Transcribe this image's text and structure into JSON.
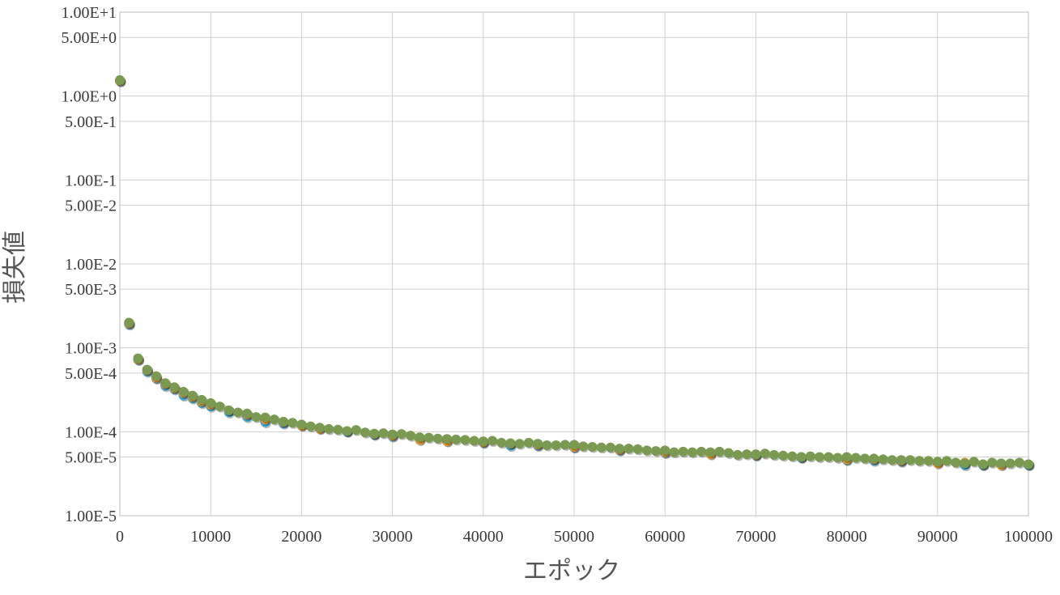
{
  "chart_data": {
    "type": "scatter",
    "title": "",
    "xlabel": "エポック",
    "ylabel": "損失値",
    "xlim": [
      0,
      100000
    ],
    "ylim": [
      1e-05,
      10
    ],
    "y_scale": "log",
    "grid": true,
    "legend": "none",
    "x_ticks": [
      {
        "value": 0,
        "label": "0"
      },
      {
        "value": 10000,
        "label": "10000"
      },
      {
        "value": 20000,
        "label": "20000"
      },
      {
        "value": 30000,
        "label": "30000"
      },
      {
        "value": 40000,
        "label": "40000"
      },
      {
        "value": 50000,
        "label": "50000"
      },
      {
        "value": 60000,
        "label": "60000"
      },
      {
        "value": 70000,
        "label": "70000"
      },
      {
        "value": 80000,
        "label": "80000"
      },
      {
        "value": 90000,
        "label": "90000"
      },
      {
        "value": 100000,
        "label": "100000"
      }
    ],
    "y_ticks": [
      {
        "value": 10,
        "label": "1.00E+1"
      },
      {
        "value": 5,
        "label": "5.00E+0"
      },
      {
        "value": 1,
        "label": "1.00E+0"
      },
      {
        "value": 0.5,
        "label": "5.00E-1"
      },
      {
        "value": 0.1,
        "label": "1.00E-1"
      },
      {
        "value": 0.05,
        "label": "5.00E-2"
      },
      {
        "value": 0.01,
        "label": "1.00E-2"
      },
      {
        "value": 0.005,
        "label": "5.00E-3"
      },
      {
        "value": 0.001,
        "label": "1.00E-3"
      },
      {
        "value": 0.0005,
        "label": "5.00E-4"
      },
      {
        "value": 0.0001,
        "label": "1.00E-4"
      },
      {
        "value": 5e-05,
        "label": "5.00E-5"
      },
      {
        "value": 1e-05,
        "label": "1.00E-5"
      }
    ],
    "series": [
      {
        "color": "#3fa7d6",
        "points": [
          [
            0,
            1.5
          ],
          [
            1000,
            0.0019
          ],
          [
            2000,
            0.00072
          ],
          [
            3000,
            0.00052
          ],
          [
            4000,
            0.00043
          ],
          [
            5000,
            0.00035
          ],
          [
            6000,
            0.00032
          ],
          [
            7000,
            0.00027
          ],
          [
            8000,
            0.00025
          ],
          [
            9000,
            0.00022
          ],
          [
            10000,
            0.0002
          ],
          [
            12000,
            0.00017
          ],
          [
            14000,
            0.00015
          ],
          [
            16000,
            0.00013
          ],
          [
            18000,
            0.000125
          ],
          [
            20000,
            0.00012
          ],
          [
            22000,
            0.00011
          ],
          [
            25000,
            0.0001
          ],
          [
            28000,
            9.2e-05
          ],
          [
            30000,
            8.8e-05
          ],
          [
            33000,
            8.2e-05
          ],
          [
            36000,
            7.8e-05
          ],
          [
            40000,
            7.4e-05
          ],
          [
            43000,
            6.8e-05
          ],
          [
            46000,
            6.8e-05
          ],
          [
            50000,
            6.5e-05
          ],
          [
            55000,
            6e-05
          ],
          [
            60000,
            5.6e-05
          ],
          [
            65000,
            5.5e-05
          ],
          [
            70000,
            5.2e-05
          ],
          [
            75000,
            4.9e-05
          ],
          [
            80000,
            4.6e-05
          ],
          [
            83000,
            4.5e-05
          ],
          [
            86000,
            4.4e-05
          ],
          [
            90000,
            4.3e-05
          ],
          [
            93000,
            4e-05
          ],
          [
            95000,
            4e-05
          ],
          [
            97000,
            4.1e-05
          ],
          [
            100000,
            4e-05
          ]
        ]
      },
      {
        "color": "#e8962f",
        "points": [
          [
            0,
            1.52
          ],
          [
            1000,
            0.00195
          ],
          [
            2000,
            0.00073
          ],
          [
            3000,
            0.00054
          ],
          [
            4000,
            0.00044
          ],
          [
            5000,
            0.00037
          ],
          [
            6000,
            0.00033
          ],
          [
            7000,
            0.00029
          ],
          [
            8000,
            0.00026
          ],
          [
            9000,
            0.00023
          ],
          [
            10000,
            0.00021
          ],
          [
            12000,
            0.00018
          ],
          [
            14000,
            0.00016
          ],
          [
            16000,
            0.00014
          ],
          [
            18000,
            0.00013
          ],
          [
            20000,
            0.000118
          ],
          [
            22000,
            0.000108
          ],
          [
            25000,
            0.000102
          ],
          [
            28000,
            9.4e-05
          ],
          [
            30000,
            9e-05
          ],
          [
            33000,
            8e-05
          ],
          [
            36000,
            7.7e-05
          ],
          [
            40000,
            7.5e-05
          ],
          [
            43000,
            7.2e-05
          ],
          [
            46000,
            7e-05
          ],
          [
            50000,
            6.6e-05
          ],
          [
            55000,
            6.1e-05
          ],
          [
            60000,
            5.7e-05
          ],
          [
            65000,
            5.4e-05
          ],
          [
            70000,
            5.3e-05
          ],
          [
            75000,
            5e-05
          ],
          [
            80000,
            4.7e-05
          ],
          [
            83000,
            4.7e-05
          ],
          [
            86000,
            4.5e-05
          ],
          [
            90000,
            4.2e-05
          ],
          [
            93000,
            4.3e-05
          ],
          [
            95000,
            4.1e-05
          ],
          [
            97000,
            4e-05
          ],
          [
            100000,
            4.1e-05
          ]
        ]
      },
      {
        "color": "#7a9a52",
        "points": [
          [
            0,
            1.55
          ],
          [
            1000,
            0.002
          ],
          [
            2000,
            0.00075
          ],
          [
            3000,
            0.00055
          ],
          [
            4000,
            0.00046
          ],
          [
            5000,
            0.00038
          ],
          [
            6000,
            0.00034
          ],
          [
            7000,
            0.0003
          ],
          [
            8000,
            0.00027
          ],
          [
            9000,
            0.00024
          ],
          [
            10000,
            0.00022
          ],
          [
            11000,
            0.0002
          ],
          [
            12000,
            0.00018
          ],
          [
            13000,
            0.00017
          ],
          [
            14000,
            0.000165
          ],
          [
            15000,
            0.00015
          ],
          [
            16000,
            0.000148
          ],
          [
            17000,
            0.00014
          ],
          [
            18000,
            0.000132
          ],
          [
            19000,
            0.000128
          ],
          [
            20000,
            0.000122
          ],
          [
            21000,
            0.000116
          ],
          [
            22000,
            0.000112
          ],
          [
            23000,
            0.000108
          ],
          [
            24000,
            0.000106
          ],
          [
            25000,
            0.000102
          ],
          [
            26000,
            0.000105
          ],
          [
            27000,
            9.8e-05
          ],
          [
            28000,
            9.5e-05
          ],
          [
            29000,
            9.6e-05
          ],
          [
            30000,
            9.3e-05
          ],
          [
            31000,
            9.4e-05
          ],
          [
            32000,
            9e-05
          ],
          [
            33000,
            8.6e-05
          ],
          [
            34000,
            8.5e-05
          ],
          [
            35000,
            8.3e-05
          ],
          [
            36000,
            8.2e-05
          ],
          [
            37000,
            8.1e-05
          ],
          [
            38000,
            8e-05
          ],
          [
            39000,
            7.8e-05
          ],
          [
            40000,
            7.7e-05
          ],
          [
            41000,
            7.8e-05
          ],
          [
            42000,
            7.4e-05
          ],
          [
            43000,
            7.3e-05
          ],
          [
            44000,
            7.2e-05
          ],
          [
            45000,
            7.4e-05
          ],
          [
            46000,
            7.2e-05
          ],
          [
            47000,
            6.9e-05
          ],
          [
            48000,
            6.9e-05
          ],
          [
            49000,
            7e-05
          ],
          [
            50000,
            7e-05
          ],
          [
            51000,
            6.7e-05
          ],
          [
            52000,
            6.6e-05
          ],
          [
            53000,
            6.5e-05
          ],
          [
            54000,
            6.5e-05
          ],
          [
            55000,
            6.3e-05
          ],
          [
            56000,
            6.3e-05
          ],
          [
            57000,
            6.2e-05
          ],
          [
            58000,
            6e-05
          ],
          [
            59000,
            5.9e-05
          ],
          [
            60000,
            6e-05
          ],
          [
            61000,
            5.7e-05
          ],
          [
            62000,
            5.8e-05
          ],
          [
            63000,
            5.7e-05
          ],
          [
            64000,
            5.8e-05
          ],
          [
            65000,
            5.7e-05
          ],
          [
            66000,
            5.8e-05
          ],
          [
            67000,
            5.6e-05
          ],
          [
            68000,
            5.3e-05
          ],
          [
            69000,
            5.4e-05
          ],
          [
            70000,
            5.4e-05
          ],
          [
            71000,
            5.5e-05
          ],
          [
            72000,
            5.3e-05
          ],
          [
            73000,
            5.2e-05
          ],
          [
            74000,
            5.1e-05
          ],
          [
            75000,
            5e-05
          ],
          [
            76000,
            5.1e-05
          ],
          [
            77000,
            5e-05
          ],
          [
            78000,
            5e-05
          ],
          [
            79000,
            4.9e-05
          ],
          [
            80000,
            5e-05
          ],
          [
            81000,
            4.9e-05
          ],
          [
            82000,
            4.8e-05
          ],
          [
            83000,
            4.8e-05
          ],
          [
            84000,
            4.7e-05
          ],
          [
            85000,
            4.6e-05
          ],
          [
            86000,
            4.6e-05
          ],
          [
            87000,
            4.6e-05
          ],
          [
            88000,
            4.5e-05
          ],
          [
            89000,
            4.5e-05
          ],
          [
            90000,
            4.4e-05
          ],
          [
            91000,
            4.5e-05
          ],
          [
            92000,
            4.3e-05
          ],
          [
            93000,
            4.2e-05
          ],
          [
            94000,
            4.4e-05
          ],
          [
            95000,
            4.1e-05
          ],
          [
            96000,
            4.3e-05
          ],
          [
            97000,
            4.2e-05
          ],
          [
            98000,
            4.2e-05
          ],
          [
            99000,
            4.3e-05
          ],
          [
            100000,
            4.1e-05
          ]
        ]
      }
    ]
  }
}
